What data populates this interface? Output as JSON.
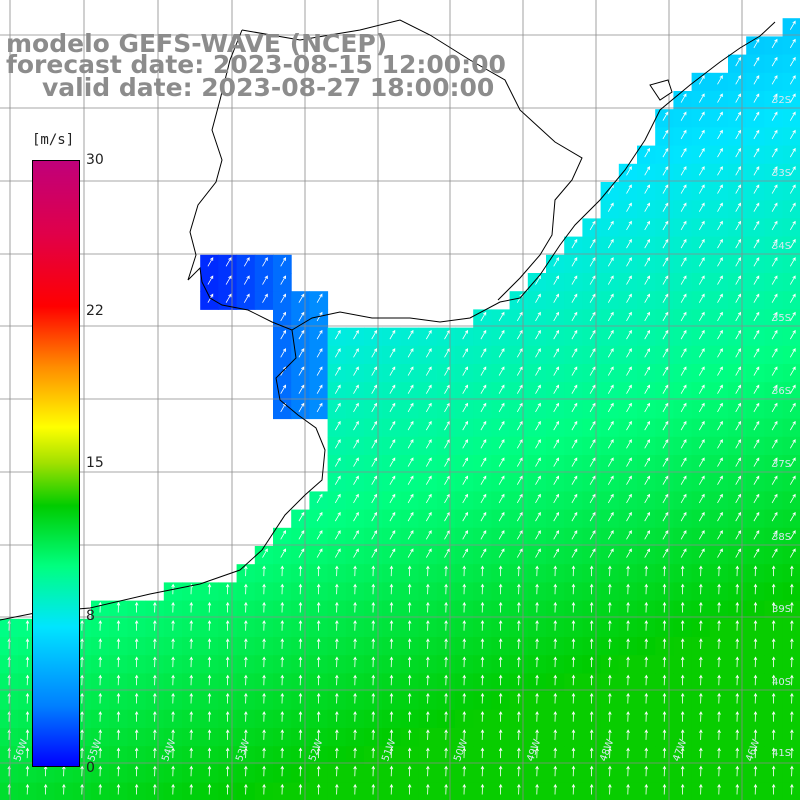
{
  "title": {
    "line1": "modelo GEFS-WAVE (NCEP)",
    "line2": "forecast date: 2023-08-15 12:00:00",
    "line3": "valid date: 2023-08-27 18:00:00"
  },
  "colorbar": {
    "unit": "[m/s]",
    "ticks": [
      {
        "value": 30,
        "label": "30"
      },
      {
        "value": 22,
        "label": "22"
      },
      {
        "value": 15,
        "label": "15"
      },
      {
        "value": 8,
        "label": "8"
      },
      {
        "value": 0,
        "label": "0"
      }
    ],
    "colors": [
      "#0000ff",
      "#0080ff",
      "#00e5ff",
      "#00ff80",
      "#00cc00",
      "#a0e000",
      "#ffff00",
      "#ff8c00",
      "#ff0000",
      "#c0007a"
    ]
  },
  "latitude_labels": [
    "32S",
    "33S",
    "34S",
    "35S",
    "36S",
    "37S",
    "38S",
    "39S",
    "40S",
    "41S"
  ],
  "longitude_labels": [
    "56W",
    "55W",
    "54W",
    "53W",
    "52W",
    "51W",
    "50W",
    "49W",
    "48W",
    "47W",
    "46W"
  ],
  "land_color": "#ffffff",
  "arrow_color": "#ffffff"
}
